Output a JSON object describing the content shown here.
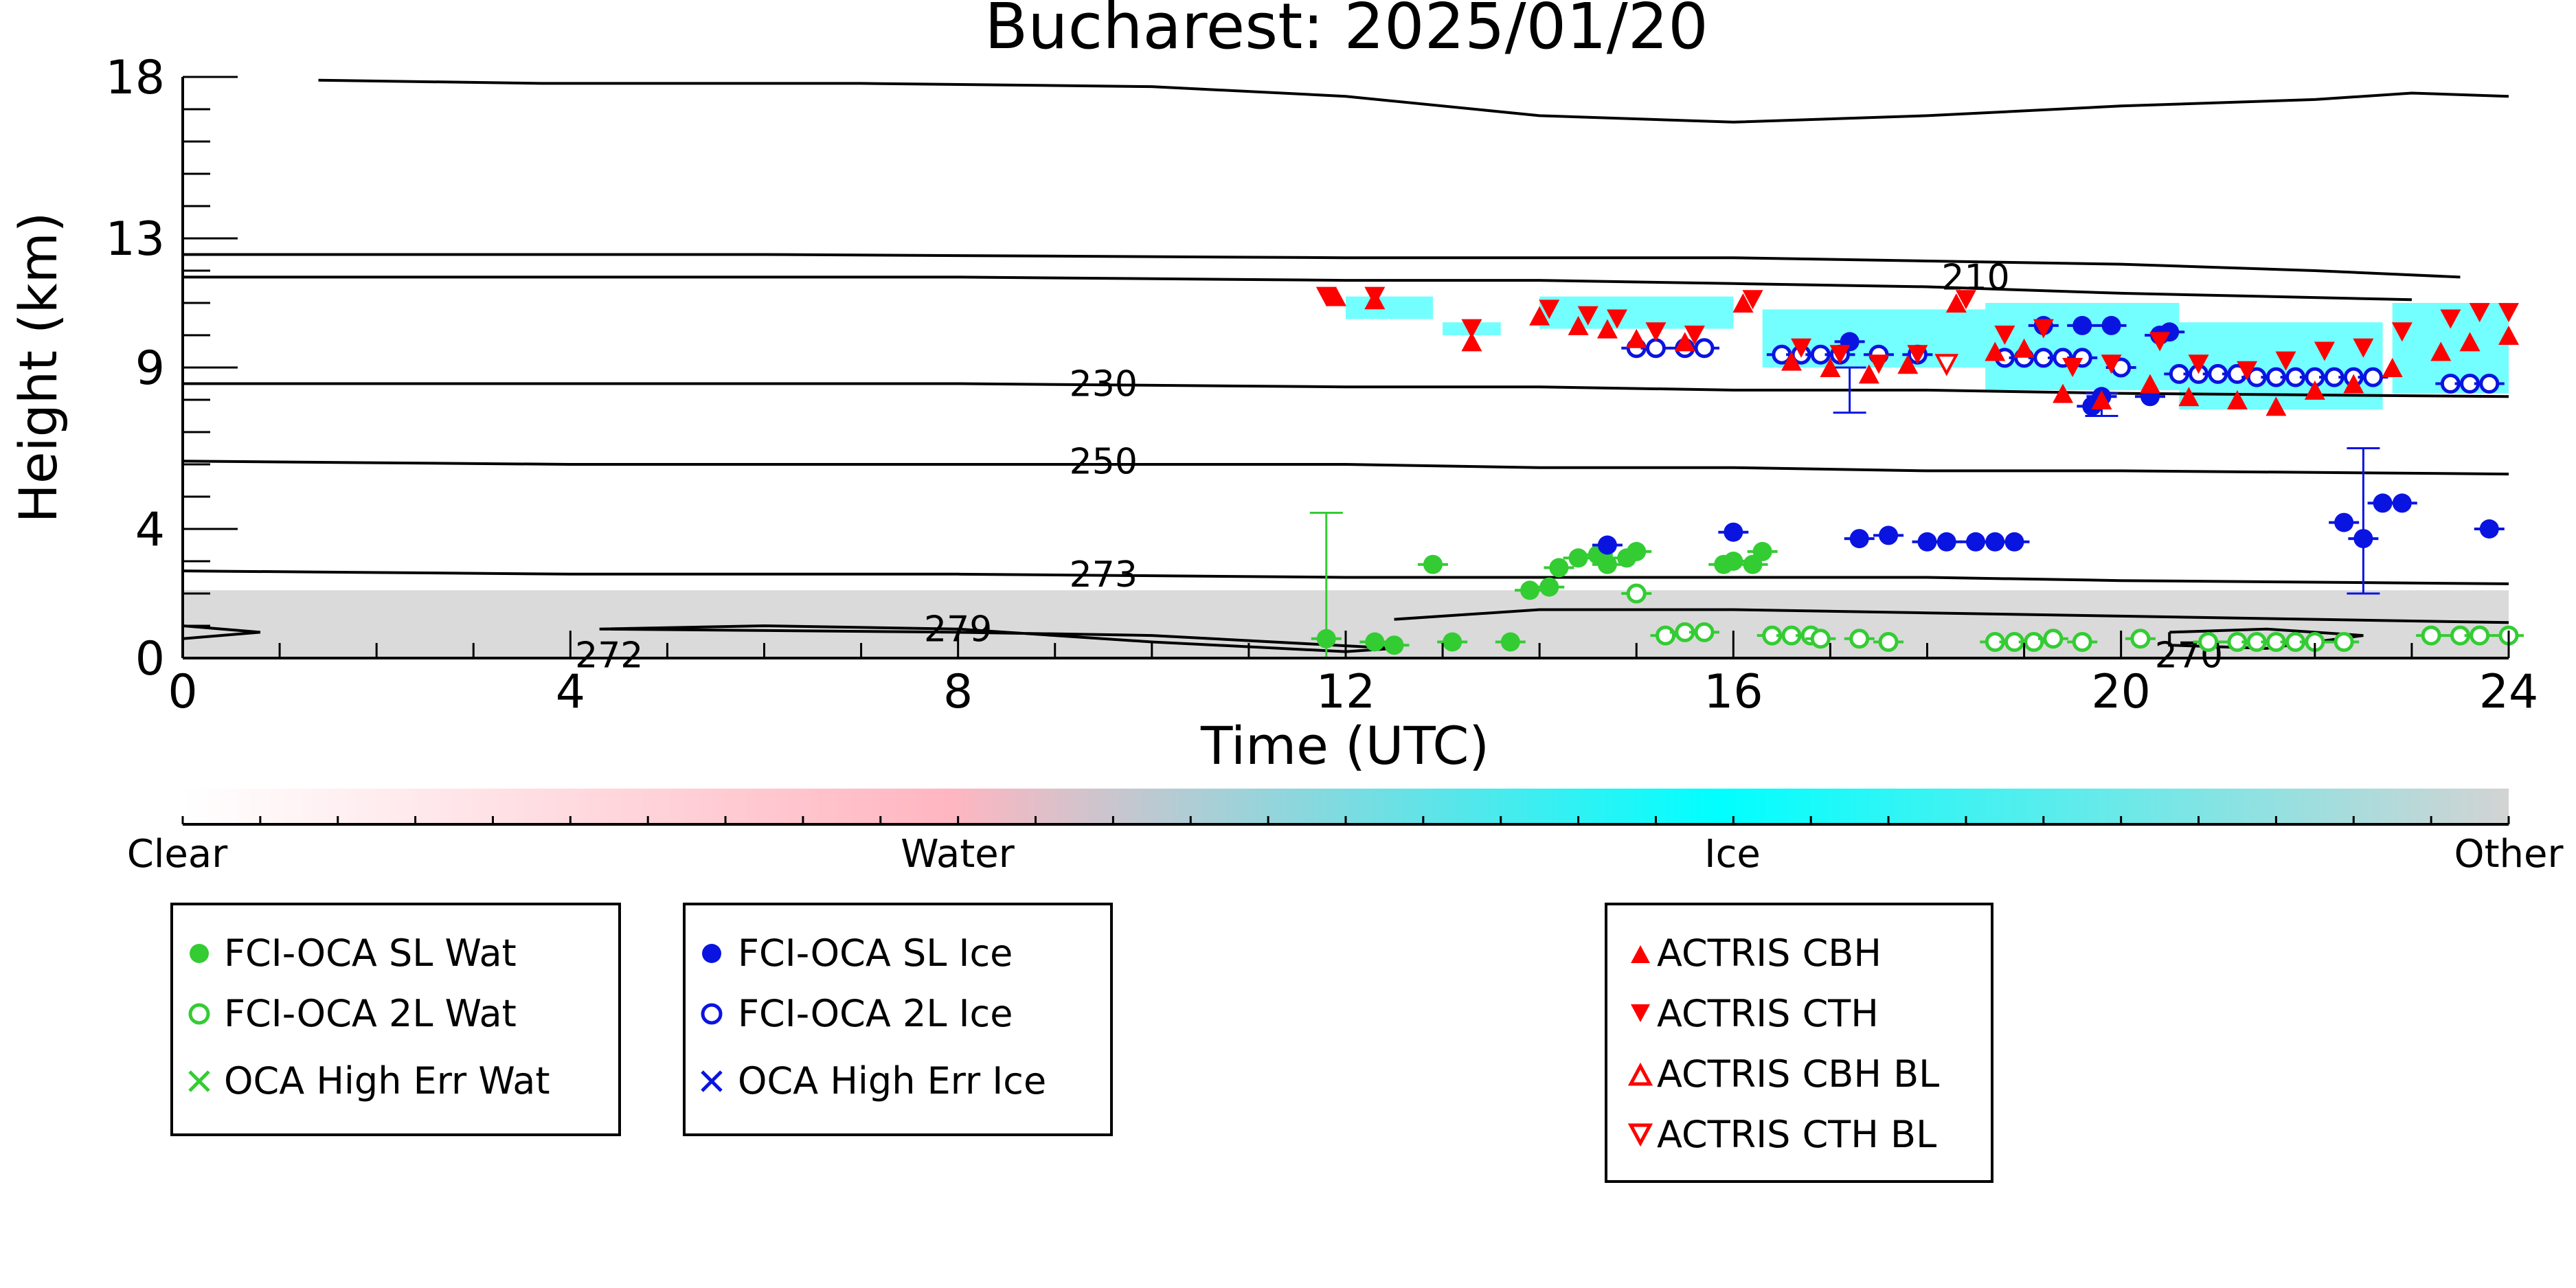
{
  "chart_data": {
    "type": "scatter",
    "title": "Bucharest: 2025/01/20",
    "xlabel": "Time (UTC)",
    "ylabel": "Height (km)",
    "xlim": [
      0,
      24
    ],
    "ylim": [
      0,
      18
    ],
    "x_ticks": [
      0,
      4,
      8,
      12,
      16,
      20,
      24
    ],
    "y_ticks": [
      0,
      4,
      9,
      13,
      18
    ],
    "contours": [
      {
        "label": "210",
        "label_x": 18.5,
        "y": [
          11.8,
          11.8,
          11.8,
          11.7,
          11.7,
          11.6,
          11.5,
          11.3,
          11.1
        ],
        "x": [
          0,
          4,
          8,
          12,
          14,
          16,
          18,
          20,
          23
        ]
      },
      {
        "label": "230",
        "label_x": 9.5,
        "y": [
          8.5,
          8.5,
          8.5,
          8.4,
          8.4,
          8.3,
          8.3,
          8.2,
          8.1
        ],
        "x": [
          0,
          4,
          8,
          12,
          14,
          16,
          18,
          20,
          24
        ]
      },
      {
        "label": "250",
        "label_x": 9.5,
        "y": [
          6.1,
          6.0,
          6.0,
          6.0,
          5.9,
          5.9,
          5.8,
          5.8,
          5.7
        ],
        "x": [
          0,
          4,
          8,
          12,
          14,
          16,
          18,
          20,
          24
        ]
      },
      {
        "label": "273",
        "label_x": 9.5,
        "y": [
          2.7,
          2.6,
          2.6,
          2.5,
          2.5,
          2.5,
          2.5,
          2.4,
          2.3
        ],
        "x": [
          0,
          4,
          8,
          12,
          14,
          16,
          18,
          20,
          24
        ]
      },
      {
        "label": "279",
        "label_x": 8.0,
        "y": [],
        "x": []
      },
      {
        "label": "272",
        "label_x": 4.4,
        "y": [],
        "x": []
      },
      {
        "label": "270",
        "label_x": 20.7,
        "y": [],
        "x": []
      }
    ],
    "series": [
      {
        "name": "FCI-OCA SL Wat",
        "marker": "filled-circle",
        "color": "#33cc33",
        "x": [
          11.8,
          12.3,
          12.5,
          12.9,
          13.1,
          13.7,
          13.9,
          14.1,
          14.2,
          14.4,
          14.6,
          14.7,
          14.9,
          15.0,
          15.9,
          16.0,
          16.2,
          16.3
        ],
        "y": [
          0.6,
          0.5,
          0.4,
          2.9,
          0.5,
          0.5,
          2.1,
          2.2,
          2.8,
          3.1,
          3.2,
          2.9,
          3.1,
          3.3,
          2.9,
          3.0,
          2.9,
          3.3
        ]
      },
      {
        "name": "FCI-OCA 2L Wat",
        "marker": "open-circle",
        "color": "#33cc33",
        "x": [
          15.0,
          15.3,
          15.5,
          15.7,
          16.4,
          16.6,
          16.8,
          16.9,
          17.3,
          17.6,
          18.7,
          18.9,
          19.1,
          19.3,
          19.6,
          20.2,
          20.9,
          21.2,
          21.4,
          21.6,
          21.8,
          22.0,
          22.3,
          23.2,
          23.5,
          23.7,
          24.0
        ],
        "y": [
          2.0,
          0.7,
          0.8,
          0.8,
          0.7,
          0.7,
          0.7,
          0.6,
          0.6,
          0.5,
          0.5,
          0.5,
          0.5,
          0.6,
          0.5,
          0.6,
          0.5,
          0.5,
          0.5,
          0.5,
          0.5,
          0.5,
          0.5,
          0.7,
          0.7,
          0.7,
          0.7
        ]
      },
      {
        "name": "OCA High Err Wat",
        "marker": "x",
        "color": "#33cc33",
        "x": [],
        "y": []
      },
      {
        "name": "FCI-OCA SL Ice",
        "marker": "filled-circle",
        "color": "#0a14e0",
        "x": [
          14.7,
          16.0,
          17.3,
          17.6,
          18.0,
          18.2,
          18.5,
          18.7,
          18.9,
          19.2,
          19.6,
          19.9,
          20.3,
          20.5,
          22.3,
          22.5,
          22.7,
          22.9,
          23.8,
          17.2,
          19.7,
          19.8,
          20.4
        ],
        "y": [
          3.5,
          3.9,
          3.7,
          3.8,
          3.6,
          3.6,
          3.6,
          3.6,
          3.6,
          10.3,
          10.3,
          10.3,
          8.1,
          10.1,
          4.2,
          3.7,
          4.8,
          4.8,
          4.0,
          9.8,
          7.8,
          8.1,
          10.0
        ]
      },
      {
        "name": "FCI-OCA 2L Ice",
        "marker": "open-circle",
        "color": "#0a14e0",
        "x": [
          15.0,
          15.2,
          15.5,
          15.7,
          16.5,
          16.7,
          16.9,
          17.1,
          17.5,
          17.9,
          18.8,
          19.0,
          19.2,
          19.4,
          19.6,
          20.0,
          20.6,
          20.8,
          21.0,
          21.2,
          21.4,
          21.6,
          21.8,
          22.0,
          22.2,
          22.4,
          22.6,
          23.4,
          23.6,
          23.8
        ],
        "y": [
          9.6,
          9.6,
          9.6,
          9.6,
          9.4,
          9.4,
          9.4,
          9.4,
          9.4,
          9.4,
          9.3,
          9.3,
          9.3,
          9.3,
          9.3,
          9.0,
          8.8,
          8.8,
          8.8,
          8.8,
          8.7,
          8.7,
          8.7,
          8.7,
          8.7,
          8.7,
          8.7,
          8.5,
          8.5,
          8.5
        ]
      },
      {
        "name": "OCA High Err Ice",
        "marker": "x",
        "color": "#0a14e0",
        "x": [],
        "y": []
      },
      {
        "name": "ACTRIS CBH",
        "marker": "triangle-up",
        "color": "#ff0000",
        "x": [
          11.9,
          12.3,
          13.3,
          14.0,
          14.4,
          14.7,
          15.0,
          15.5,
          16.1,
          16.6,
          17.0,
          17.4,
          17.8,
          18.3,
          18.7,
          19.0,
          19.4,
          19.8,
          20.3,
          20.7,
          21.2,
          21.6,
          22.0,
          22.4,
          22.8,
          23.3,
          23.6,
          24.0
        ],
        "y": [
          11.2,
          11.1,
          9.8,
          10.6,
          10.3,
          10.2,
          9.9,
          9.8,
          11.0,
          9.2,
          9.0,
          8.8,
          9.1,
          11.0,
          9.5,
          9.6,
          8.2,
          8.0,
          8.5,
          8.1,
          8.0,
          7.8,
          8.3,
          8.5,
          9.0,
          9.5,
          9.8,
          10.0
        ]
      },
      {
        "name": "ACTRIS CTH",
        "marker": "triangle-down",
        "color": "#ff0000",
        "x": [
          11.8,
          12.3,
          13.3,
          14.1,
          14.5,
          14.8,
          15.2,
          15.6,
          16.2,
          16.7,
          17.1,
          17.5,
          17.9,
          18.4,
          18.8,
          19.2,
          19.5,
          19.9,
          20.4,
          20.8,
          21.3,
          21.7,
          22.1,
          22.5,
          22.9,
          23.4,
          23.7,
          24.0
        ],
        "y": [
          11.2,
          11.2,
          10.2,
          10.8,
          10.6,
          10.5,
          10.1,
          10.0,
          11.1,
          9.6,
          9.4,
          9.1,
          9.4,
          11.1,
          10.0,
          10.2,
          9.0,
          9.1,
          9.8,
          9.1,
          8.9,
          9.2,
          9.5,
          9.6,
          10.1,
          10.5,
          10.7,
          10.7
        ]
      },
      {
        "name": "ACTRIS CBH BL",
        "marker": "open-triangle-up",
        "color": "#ff0000",
        "x": [],
        "y": []
      },
      {
        "name": "ACTRIS CTH BL",
        "marker": "open-triangle-down",
        "color": "#ff0000",
        "x": [
          18.2
        ],
        "y": [
          9.1
        ]
      }
    ],
    "error_bars": [
      {
        "x": 11.8,
        "y": 0.6,
        "ylow": 0.0,
        "yhigh": 4.5,
        "color": "#33cc33"
      },
      {
        "x": 22.5,
        "y": 3.7,
        "ylow": 2.0,
        "yhigh": 6.5,
        "color": "#0a14e0"
      },
      {
        "x": 17.2,
        "y": 8.2,
        "ylow": 7.6,
        "yhigh": 9.0,
        "color": "#0a14e0"
      },
      {
        "x": 19.8,
        "y": 7.8,
        "ylow": 7.5,
        "yhigh": 8.2,
        "color": "#0a14e0"
      }
    ],
    "colorbar": {
      "labels": [
        "Clear",
        "Water",
        "Ice",
        "Other"
      ],
      "colors": [
        "#ffffff",
        "#ffb6c1",
        "#00ffff",
        "#d3d3d3"
      ]
    },
    "legends": [
      {
        "entries": [
          "FCI-OCA SL Wat",
          "FCI-OCA 2L Wat",
          "OCA High Err Wat"
        ]
      },
      {
        "entries": [
          "FCI-OCA SL Ice",
          "FCI-OCA 2L Ice",
          "OCA High Err Ice"
        ]
      },
      {
        "entries": [
          "ACTRIS CBH",
          "ACTRIS CTH",
          "ACTRIS CBH BL",
          "ACTRIS CTH BL"
        ]
      }
    ],
    "grid": false
  }
}
